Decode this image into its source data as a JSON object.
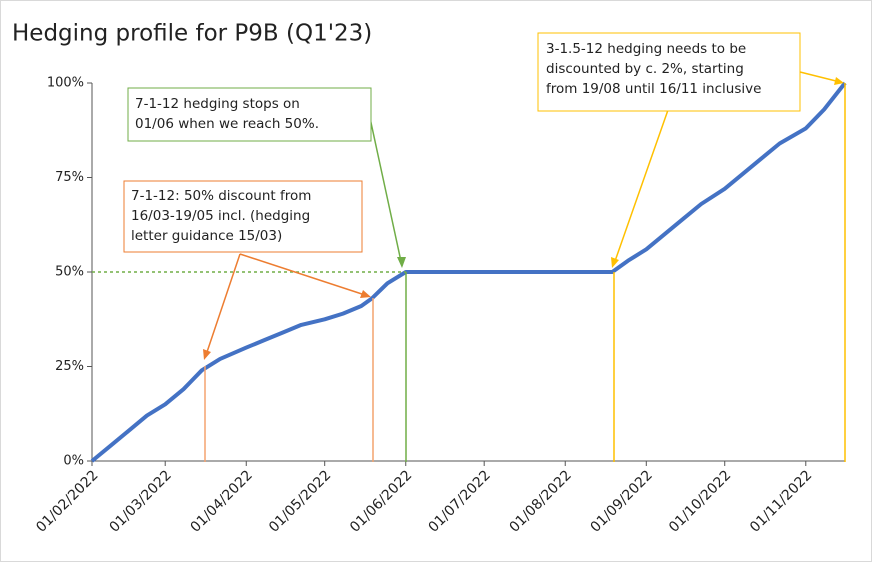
{
  "chart_data": {
    "type": "line",
    "title": "Hedging profile for P9B (Q1'23)",
    "x": [
      "01/02/2022",
      "08/02/2022",
      "15/02/2022",
      "22/02/2022",
      "01/03/2022",
      "08/03/2022",
      "15/03/2022",
      "22/03/2022",
      "01/04/2022",
      "08/04/2022",
      "15/04/2022",
      "22/04/2022",
      "01/05/2022",
      "08/05/2022",
      "15/05/2022",
      "19/05/2022",
      "25/05/2022",
      "01/06/2022",
      "19/08/2022",
      "25/08/2022",
      "01/09/2022",
      "08/09/2022",
      "15/09/2022",
      "22/09/2022",
      "01/10/2022",
      "08/10/2022",
      "15/10/2022",
      "22/10/2022",
      "01/11/2022",
      "08/11/2022",
      "16/11/2022"
    ],
    "series": [
      {
        "color": "#4472c4",
        "values": [
          0,
          4,
          8,
          12,
          15,
          19,
          24,
          27,
          30,
          32,
          34,
          36,
          37.5,
          39,
          41,
          43,
          47,
          50,
          50,
          53,
          56,
          60,
          64,
          68,
          72,
          76,
          80,
          84,
          88,
          93,
          100
        ]
      }
    ],
    "xlim": [
      "01/02/2022",
      "16/11/2022"
    ],
    "xticks": [
      "01/02/2022",
      "01/03/2022",
      "01/04/2022",
      "01/05/2022",
      "01/06/2022",
      "01/07/2022",
      "01/08/2022",
      "01/09/2022",
      "01/10/2022",
      "01/11/2022"
    ],
    "ylim": [
      0,
      100
    ],
    "yticks": [
      {
        "value": 0,
        "label": "0%"
      },
      {
        "value": 25,
        "label": "25%"
      },
      {
        "value": 50,
        "label": "50%"
      },
      {
        "value": 75,
        "label": "75%"
      },
      {
        "value": 100,
        "label": "100%"
      }
    ],
    "annotations": [
      {
        "lines": [
          "7-1-12 hedging stops on",
          "01/06 when we reach 50%."
        ]
      },
      {
        "lines": [
          "7-1-12: 50% discount from",
          "16/03-19/05 incl. (hedging",
          "letter guidance 15/03)"
        ]
      },
      {
        "lines": [
          "3-1.5-12 hedging needs to be",
          "discounted by c. 2%, starting",
          "from 19/08 until 16/11 inclusive"
        ]
      }
    ]
  }
}
